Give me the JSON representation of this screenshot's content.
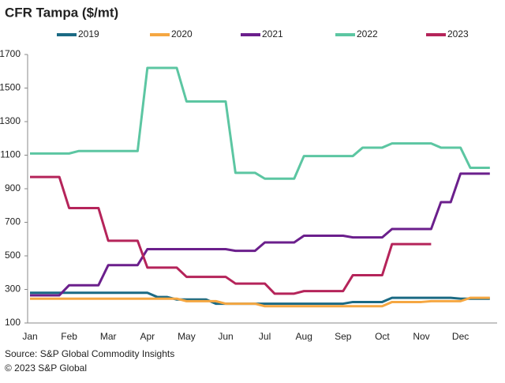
{
  "chart_data": {
    "type": "line",
    "title": "CFR Tampa ($/mt)",
    "categories": [
      "Jan",
      null,
      null,
      null,
      "Feb",
      null,
      null,
      null,
      "Mar",
      null,
      null,
      null,
      "Apr",
      null,
      null,
      null,
      "May",
      null,
      null,
      null,
      "Jun",
      null,
      null,
      null,
      "Jul",
      null,
      null,
      null,
      "Aug",
      null,
      null,
      null,
      "Sep",
      null,
      null,
      null,
      "Oct",
      null,
      null,
      null,
      "Nov",
      null,
      null,
      null,
      "Dec",
      null,
      null,
      null
    ],
    "series": [
      {
        "name": "2019",
        "color": "#1b6a84",
        "values": [
          280,
          280,
          280,
          280,
          280,
          280,
          280,
          280,
          280,
          280,
          280,
          280,
          280,
          255,
          255,
          240,
          240,
          240,
          240,
          215,
          215,
          215,
          215,
          215,
          215,
          215,
          215,
          215,
          215,
          215,
          215,
          215,
          215,
          225,
          225,
          225,
          225,
          250,
          250,
          250,
          250,
          250,
          250,
          250,
          245,
          245,
          245,
          245
        ]
      },
      {
        "name": "2020",
        "color": "#f5a742",
        "values": [
          245,
          245,
          245,
          245,
          245,
          245,
          245,
          245,
          245,
          245,
          245,
          245,
          245,
          245,
          245,
          245,
          230,
          230,
          230,
          230,
          215,
          215,
          215,
          215,
          200,
          200,
          200,
          200,
          200,
          200,
          200,
          200,
          200,
          200,
          200,
          200,
          200,
          225,
          225,
          225,
          225,
          230,
          230,
          230,
          230,
          250,
          250,
          250
        ]
      },
      {
        "name": "2021",
        "color": "#6b1f8c",
        "values": [
          265,
          265,
          265,
          265,
          325,
          325,
          325,
          325,
          445,
          445,
          445,
          445,
          540,
          540,
          540,
          540,
          540,
          540,
          540,
          540,
          540,
          530,
          530,
          530,
          580,
          580,
          580,
          580,
          620,
          620,
          620,
          620,
          620,
          610,
          610,
          610,
          610,
          660,
          660,
          660,
          660,
          660,
          820,
          820,
          990,
          990,
          990,
          990
        ]
      },
      {
        "name": "2022",
        "color": "#5cc6a2",
        "values": [
          1110,
          1110,
          1110,
          1110,
          1110,
          1125,
          1125,
          1125,
          1125,
          1125,
          1125,
          1125,
          1620,
          1620,
          1620,
          1620,
          1420,
          1420,
          1420,
          1420,
          1420,
          995,
          995,
          995,
          960,
          960,
          960,
          960,
          1095,
          1095,
          1095,
          1095,
          1095,
          1095,
          1145,
          1145,
          1145,
          1170,
          1170,
          1170,
          1170,
          1170,
          1145,
          1145,
          1145,
          1025,
          1025,
          1025
        ]
      },
      {
        "name": "2023",
        "color": "#b5245a",
        "values": [
          970,
          970,
          970,
          970,
          785,
          785,
          785,
          785,
          590,
          590,
          590,
          590,
          430,
          430,
          430,
          430,
          375,
          375,
          375,
          375,
          375,
          335,
          335,
          335,
          335,
          275,
          275,
          275,
          290,
          290,
          290,
          290,
          290,
          385,
          385,
          385,
          385,
          570,
          570,
          570,
          570,
          570,
          null,
          null,
          null,
          null,
          null,
          null
        ]
      }
    ],
    "ylim": [
      100,
      1700
    ],
    "yticks": [
      100,
      300,
      500,
      700,
      900,
      1100,
      1300,
      1500,
      1700
    ],
    "grid": false,
    "source": "Source: S&P Global Commodity Insights",
    "copyright": "© 2023 S&P Global"
  }
}
